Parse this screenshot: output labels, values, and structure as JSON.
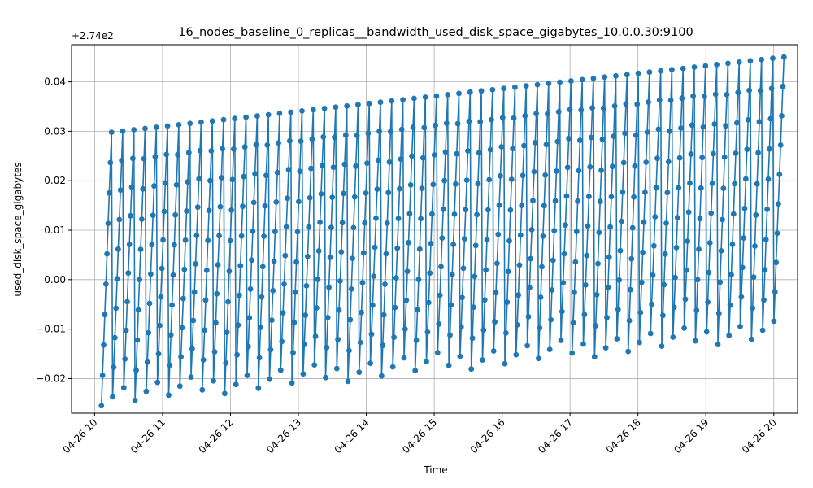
{
  "chart_data": {
    "type": "line",
    "title": "16_nodes_baseline_0_replicas__bandwidth_used_disk_space_gigabytes_10.0.0.30:9100",
    "xlabel": "Time",
    "ylabel": "used_disk_space_gigabytes",
    "y_offset_label": "+2.74e2",
    "y_offset": 274,
    "x_ticks": [
      "04-26 10",
      "04-26 11",
      "04-26 12",
      "04-26 13",
      "04-26 14",
      "04-26 15",
      "04-26 16",
      "04-26 17",
      "04-26 18",
      "04-26 19",
      "04-26 20"
    ],
    "y_ticks": [
      "−0.02",
      "−0.01",
      "0.00",
      "0.01",
      "0.02",
      "0.03",
      "0.04"
    ],
    "xlim_hours": [
      9.66,
      20.35
    ],
    "ylim_offset": [
      -0.027,
      0.0475
    ],
    "grid": true,
    "series": [
      {
        "color": "#1f77b4",
        "marker": "circle",
        "pattern": "sawtooth",
        "start_hour": 10.1,
        "end_hour": 20.15,
        "cycles": 61,
        "points_per_cycle": 10,
        "low_start": -0.0235,
        "low_end": -0.01,
        "high_start": 0.0298,
        "high_end": 0.045
      }
    ]
  }
}
